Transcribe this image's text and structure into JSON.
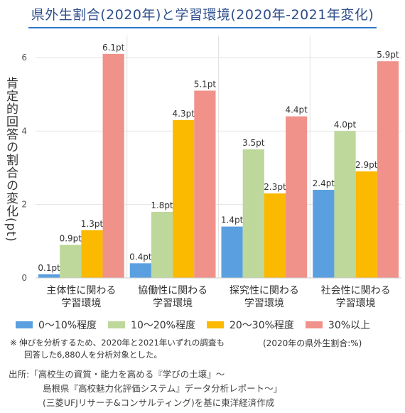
{
  "title": "県外生割合(2020年)と学習環境(2020年-2021年変化)",
  "ylabel": "肯定的回答の割合の変化(pt)",
  "chart_data": {
    "type": "bar",
    "categories": [
      [
        "主体性に関わる",
        "学習環境"
      ],
      [
        "協働性に関わる",
        "学習環境"
      ],
      [
        "探究性に関わる",
        "学習環境"
      ],
      [
        "社会性に関わる",
        "学習環境"
      ]
    ],
    "series": [
      {
        "name": "0〜10%程度",
        "color": "#5aa0e0",
        "values": [
          0.1,
          0.4,
          1.4,
          2.4
        ],
        "labels": [
          "0.1pt",
          "0.4pt",
          "1.4pt",
          "2.4pt"
        ]
      },
      {
        "name": "10〜20%程度",
        "color": "#bdd89a",
        "values": [
          0.9,
          1.8,
          3.5,
          4.0
        ],
        "labels": [
          "0.9pt",
          "1.8pt",
          "3.5pt",
          "4.0pt"
        ]
      },
      {
        "name": "20〜30%程度",
        "color": "#fbb900",
        "values": [
          1.3,
          4.3,
          2.3,
          2.9
        ],
        "labels": [
          "1.3pt",
          "4.3pt",
          "2.3pt",
          "2.9pt"
        ]
      },
      {
        "name": "30%以上",
        "color": "#f0928a",
        "values": [
          6.1,
          5.1,
          4.4,
          5.9
        ],
        "labels": [
          "6.1pt",
          "5.1pt",
          "4.4pt",
          "5.9pt"
        ]
      }
    ],
    "yticks": [
      "0",
      "2",
      "4",
      "6"
    ],
    "ylim": [
      0,
      6.6
    ],
    "grid": true
  },
  "note": {
    "line1": "※ 伸びを分析するため、2020年と2021年いずれの調査も",
    "line2": "回答した6,880人を分析対象とした。"
  },
  "base_note": "(2020年の県外生割合:%)",
  "source": {
    "line1": "出所:「高校生の資質・能力を高める『学びの土壌』〜",
    "line2": "島根県『高校魅力化評価システム』データ分析レポート〜」",
    "line3": "(三菱UFJリサーチ&コンサルティング)を基に東洋経済作成"
  }
}
